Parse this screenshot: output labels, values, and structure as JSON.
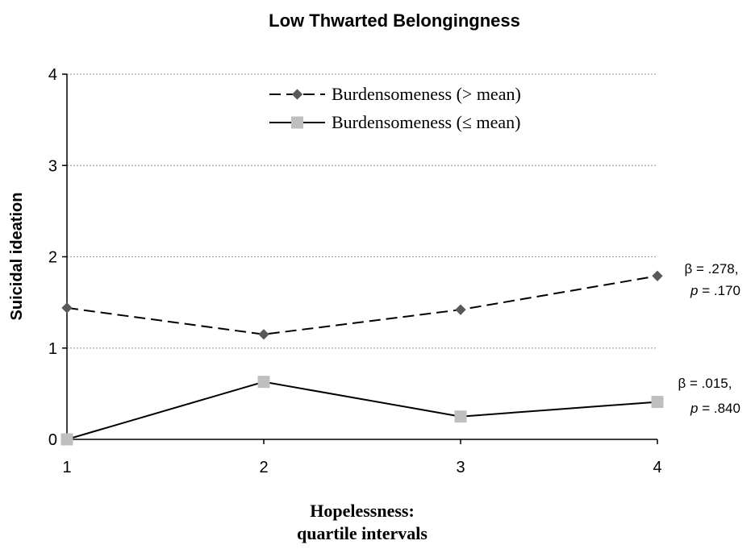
{
  "chart_data": {
    "type": "line",
    "title": "Low Thwarted Belongingness",
    "xlabel_lines": [
      "Hopelessness:",
      "quartile intervals"
    ],
    "ylabel": "Suicidal ideation",
    "categories": [
      "1",
      "2",
      "3",
      "4"
    ],
    "x": [
      1,
      2,
      3,
      4
    ],
    "ylim": [
      0,
      4
    ],
    "yticks": [
      0,
      1,
      2,
      3,
      4
    ],
    "grid": true,
    "legend_position": "top-center",
    "series": [
      {
        "name": "Burdensomeness (> mean)",
        "values": [
          1.44,
          1.15,
          1.42,
          1.79
        ],
        "line_style": "dashed",
        "marker": "diamond",
        "color": "#595959",
        "line_color": "#000000",
        "annotation": {
          "beta": "β = .278,",
          "p_prefix": "p",
          "p_value": " = .170"
        }
      },
      {
        "name": "Burdensomeness (≤ mean)",
        "values": [
          0.0,
          0.63,
          0.25,
          0.41
        ],
        "line_style": "solid",
        "marker": "square",
        "color": "#bfbfbf",
        "line_color": "#000000",
        "annotation": {
          "beta": "β = .015,",
          "p_prefix": "p",
          "p_value": " = .840"
        }
      }
    ]
  }
}
